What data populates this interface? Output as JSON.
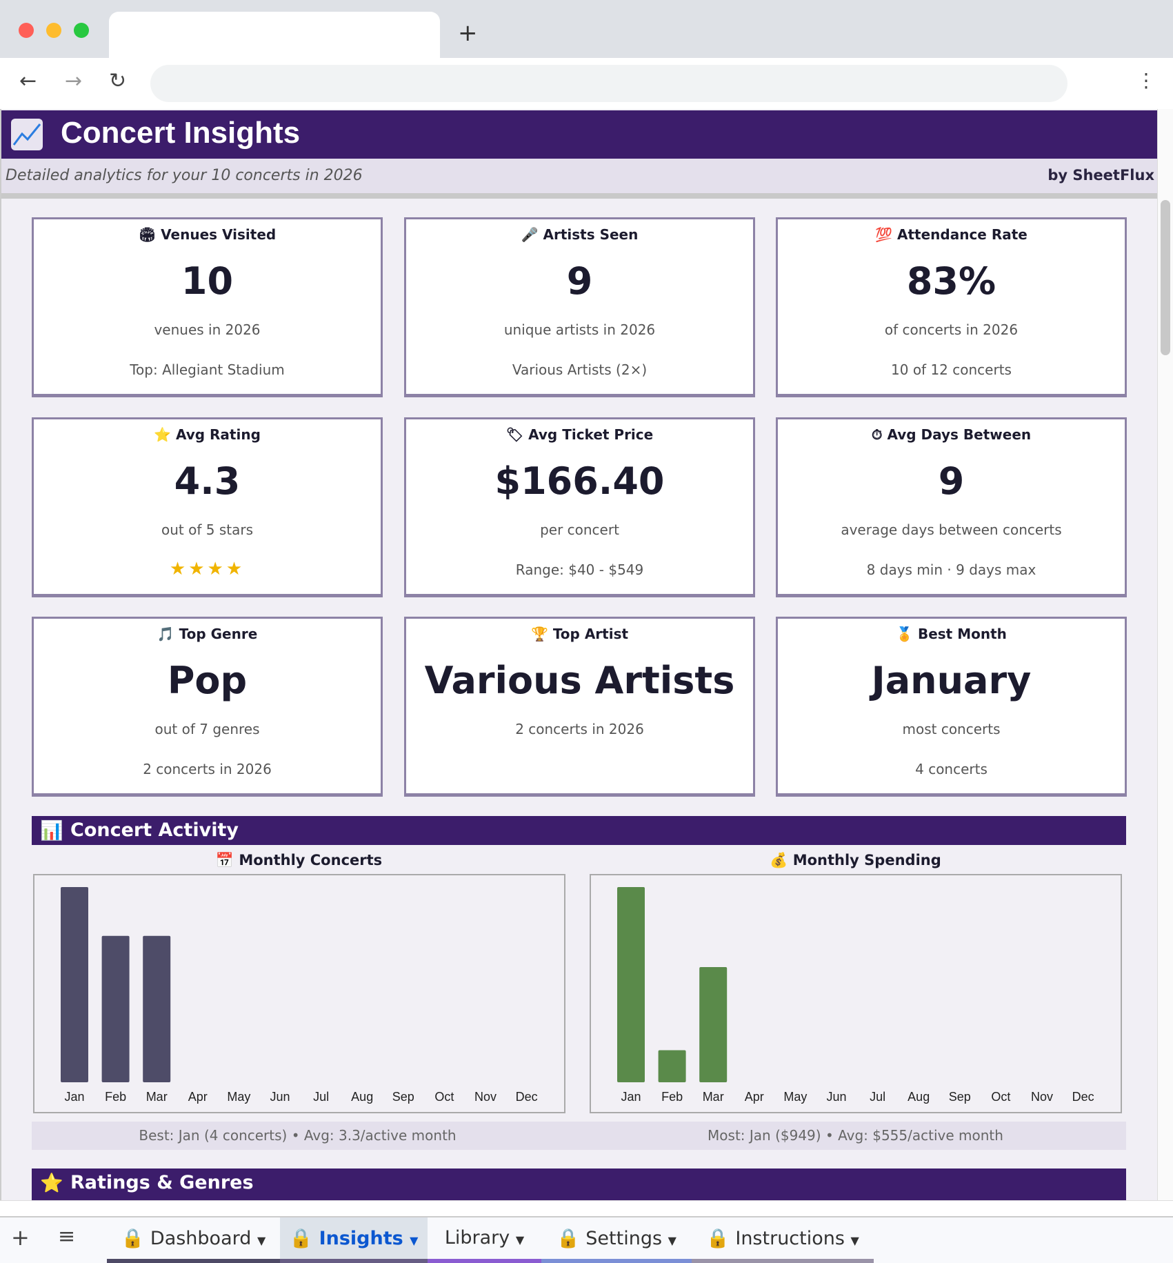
{
  "browser": {
    "new_tab": "+",
    "back": "←",
    "forward": "→",
    "reload": "↻",
    "menu": "⋮"
  },
  "header": {
    "icon": "chart-increasing-icon",
    "title": "Concert Insights",
    "subtitle": "Detailed analytics for your 10 concerts in 2026",
    "byline": "by SheetFlux"
  },
  "cards": [
    {
      "icon": "🏟",
      "title": "Venues Visited",
      "value": "10",
      "sub": "venues in 2026",
      "detail": "Top: Allegiant Stadium"
    },
    {
      "icon": "🎤",
      "title": "Artists Seen",
      "value": "9",
      "sub": "unique artists in 2026",
      "detail": "Various Artists (2×)"
    },
    {
      "icon": "💯",
      "title": "Attendance Rate",
      "value": "83%",
      "sub": "of concerts in 2026",
      "detail": "10 of 12 concerts"
    },
    {
      "icon": "⭐",
      "title": "Avg Rating",
      "value": "4.3",
      "sub": "out of 5 stars",
      "detail": "",
      "stars": 4
    },
    {
      "icon": "🏷",
      "title": "Avg Ticket Price",
      "value": "$166.40",
      "sub": "per concert",
      "detail": "Range: $40 - $549"
    },
    {
      "icon": "⏱",
      "title": "Avg Days Between",
      "value": "9",
      "sub": "average days between concerts",
      "detail": "8 days min · 9 days max"
    },
    {
      "icon": "🎵",
      "title": "Top Genre",
      "value": "Pop",
      "sub": "out of 7 genres",
      "detail": "2 concerts in 2026"
    },
    {
      "icon": "🏆",
      "title": "Top Artist",
      "value": "Various Artists",
      "sub": "2 concerts in 2026",
      "detail": ""
    },
    {
      "icon": "🏅",
      "title": "Best Month",
      "value": "January",
      "sub": "most concerts",
      "detail": "4 concerts"
    }
  ],
  "sections": {
    "activity": "Concert Activity",
    "activity_icon": "📊",
    "ratings": "Ratings & Genres",
    "ratings_icon": "⭐"
  },
  "chart_data": [
    {
      "type": "bar",
      "title": "Monthly Concerts",
      "icon": "📅",
      "categories": [
        "Jan",
        "Feb",
        "Mar",
        "Apr",
        "May",
        "Jun",
        "Jul",
        "Aug",
        "Sep",
        "Oct",
        "Nov",
        "Dec"
      ],
      "values": [
        4,
        3,
        3,
        0,
        0,
        0,
        0,
        0,
        0,
        0,
        0,
        0
      ],
      "color": "#4e4c68",
      "grid": false
    },
    {
      "type": "bar",
      "title": "Monthly Spending",
      "icon": "💰",
      "categories": [
        "Jan",
        "Feb",
        "Mar",
        "Apr",
        "May",
        "Jun",
        "Jul",
        "Aug",
        "Sep",
        "Oct",
        "Nov",
        "Dec"
      ],
      "values": [
        949,
        156,
        560,
        0,
        0,
        0,
        0,
        0,
        0,
        0,
        0,
        0
      ],
      "color": "#5a8a4a",
      "grid": false
    }
  ],
  "summary": {
    "concerts": "Best: Jan (4 concerts) • Avg: 3.3/active month",
    "spending": "Most: Jan ($949) • Avg: $555/active month"
  },
  "sheet_tabs": {
    "add": "+",
    "all": "≡",
    "tabs": [
      {
        "label": "Dashboard",
        "locked": true,
        "active": false,
        "color": "#4e4a66"
      },
      {
        "label": "Insights",
        "locked": true,
        "active": true,
        "color": "#675d84"
      },
      {
        "label": "Library",
        "locked": false,
        "active": false,
        "color": "#8a5cd1"
      },
      {
        "label": "Settings",
        "locked": true,
        "active": false,
        "color": "#7b8fd6"
      },
      {
        "label": "Instructions",
        "locked": true,
        "active": false,
        "color": "#9a93a8"
      }
    ]
  }
}
